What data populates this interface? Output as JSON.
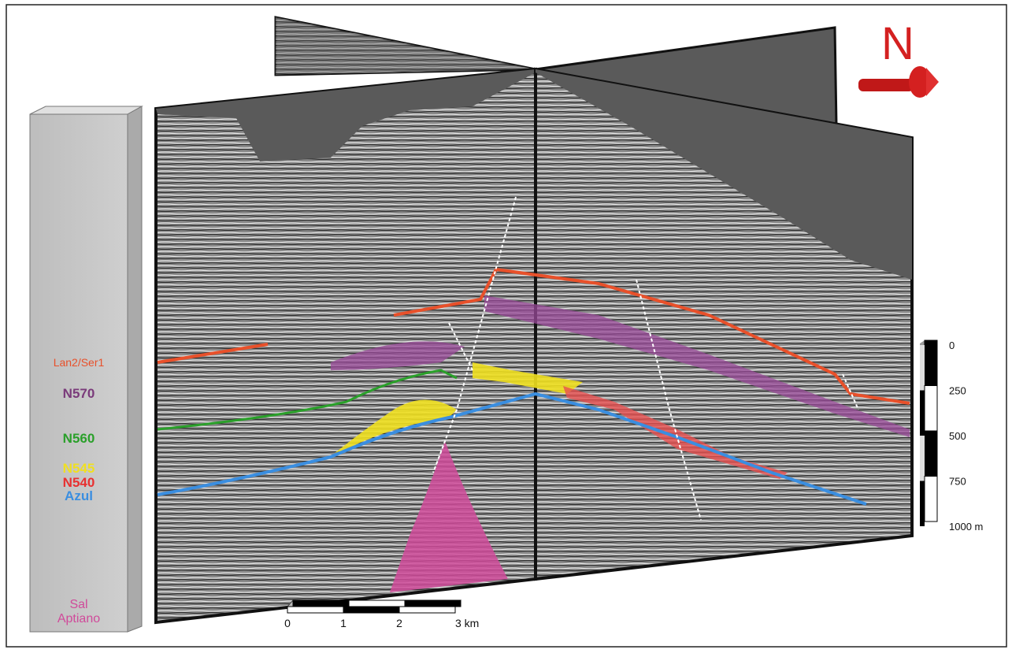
{
  "north_label": "N",
  "horizons": [
    {
      "label": "Lan2/Ser1",
      "color": "#e8502a"
    },
    {
      "label": "N570",
      "color": "#7a3a7a"
    },
    {
      "label": "N560",
      "color": "#2aa02a"
    },
    {
      "label": "N545",
      "color": "#f0e020"
    },
    {
      "label": "N540",
      "color": "#e83030"
    },
    {
      "label": "Azul",
      "color": "#3a8ee0"
    }
  ],
  "salt": {
    "lines": [
      "Sal",
      "Aptiano"
    ],
    "color": "#d04a9a"
  },
  "vertical_scale": {
    "labels": [
      "0",
      "250",
      "500",
      "750",
      "1000 m"
    ]
  },
  "horizontal_scale": {
    "labels": [
      "0",
      "1",
      "2",
      "3 km"
    ]
  }
}
